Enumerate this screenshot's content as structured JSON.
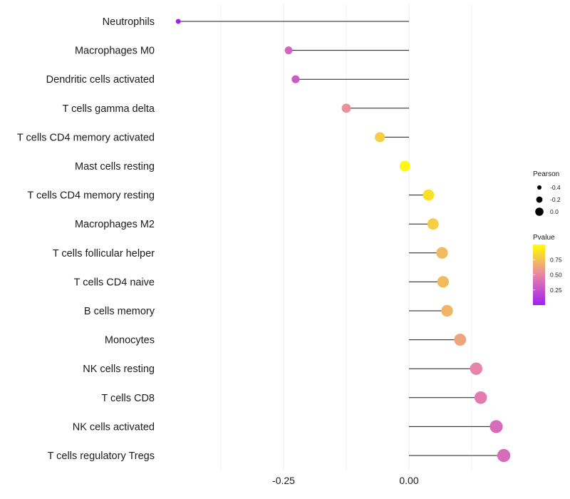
{
  "chart_data": {
    "type": "lollipop",
    "title": "",
    "xlabel": "",
    "ylabel": "",
    "xlim": [
      -0.375,
      0.2
    ],
    "x_ticks": [
      -0.25,
      0.0
    ],
    "x_tick_labels": [
      "-0.25",
      "0.00"
    ],
    "grid": true,
    "categories": [
      "Neutrophils",
      "Macrophages M0",
      "Dendritic cells activated",
      "T cells gamma delta",
      "T cells CD4 memory activated",
      "Mast cells resting",
      "T cells CD4 memory resting",
      "Macrophages M2",
      "T cells follicular helper",
      "T cells CD4 naive",
      "B cells memory",
      "Monocytes",
      "NK cells resting",
      "T cells CD8",
      "NK cells activated",
      "T cells regulatory  Tregs"
    ],
    "pearson": [
      -0.46,
      -0.24,
      -0.226,
      -0.125,
      -0.058,
      -0.008,
      0.039,
      0.048,
      0.066,
      0.068,
      0.076,
      0.102,
      0.134,
      0.143,
      0.174,
      0.189
    ],
    "pvalue": [
      0.01,
      0.35,
      0.3,
      0.55,
      0.8,
      0.97,
      0.88,
      0.8,
      0.72,
      0.72,
      0.7,
      0.63,
      0.5,
      0.46,
      0.38,
      0.38
    ],
    "legend": {
      "size": {
        "title": "Pearson",
        "labels": [
          "-0.4",
          "-0.2",
          "0.0"
        ],
        "values": [
          -0.4,
          -0.2,
          0.0
        ]
      },
      "color": {
        "title": "Pvalue",
        "labels": [
          "0.75",
          "0.50",
          "0.25"
        ],
        "values": [
          0.75,
          0.5,
          0.25
        ],
        "range": [
          0.0,
          1.0
        ],
        "low_color": "#a020f0",
        "high_color": "#ffff00"
      },
      "position": "right"
    }
  }
}
